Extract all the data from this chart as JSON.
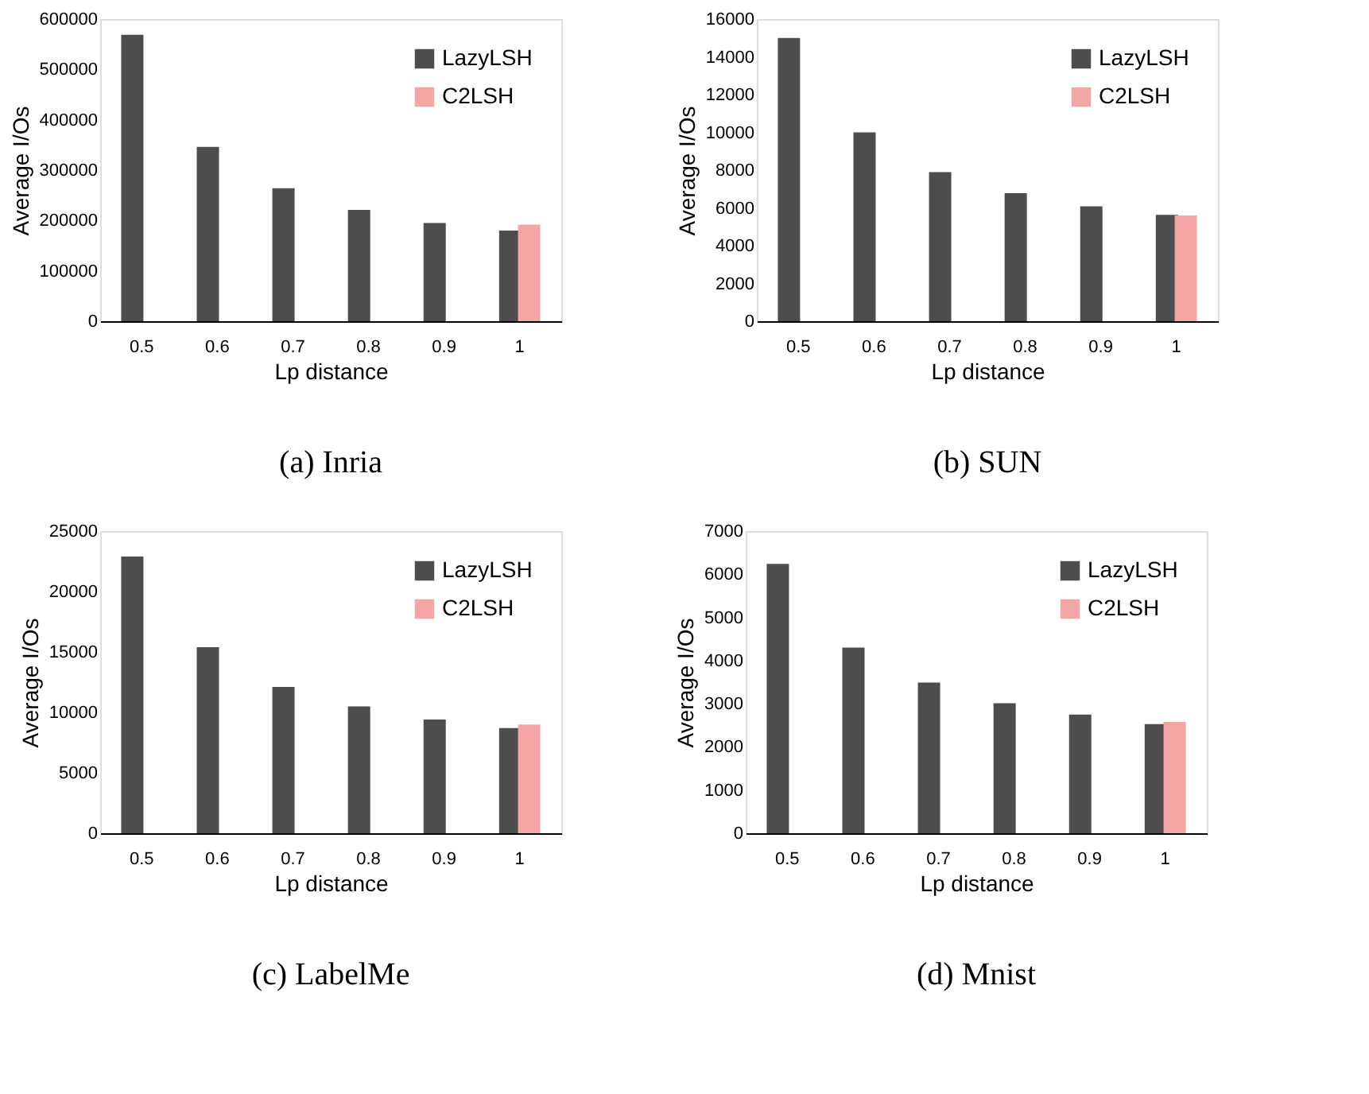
{
  "chart_data": [
    {
      "type": "bar",
      "title": "(a) Inria",
      "xlabel": "Lp distance",
      "ylabel": "Average I/Os",
      "categories": [
        "0.5",
        "0.6",
        "0.7",
        "0.8",
        "0.9",
        "1"
      ],
      "ylim": [
        0,
        600000
      ],
      "yticks": [
        0,
        100000,
        200000,
        300000,
        400000,
        500000,
        600000
      ],
      "legend": "top right",
      "grid": false,
      "series": [
        {
          "name": "LazyLSH",
          "color": "#4d4d4d",
          "values": [
            569000,
            346000,
            264000,
            221000,
            195000,
            180000
          ]
        },
        {
          "name": "C2LSH",
          "color": "#f4a6a6",
          "values": [
            null,
            null,
            null,
            null,
            null,
            192000
          ]
        }
      ]
    },
    {
      "type": "bar",
      "title": "(b) SUN",
      "xlabel": "Lp distance",
      "ylabel": "Average I/Os",
      "categories": [
        "0.5",
        "0.6",
        "0.7",
        "0.8",
        "0.9",
        "1"
      ],
      "ylim": [
        0,
        16000
      ],
      "yticks": [
        0,
        2000,
        4000,
        6000,
        8000,
        10000,
        12000,
        14000,
        16000
      ],
      "legend": "top right",
      "grid": false,
      "series": [
        {
          "name": "LazyLSH",
          "color": "#4d4d4d",
          "values": [
            15000,
            10000,
            7900,
            6780,
            6080,
            5630
          ]
        },
        {
          "name": "C2LSH",
          "color": "#f4a6a6",
          "values": [
            null,
            null,
            null,
            null,
            null,
            5600
          ]
        }
      ]
    },
    {
      "type": "bar",
      "title": "(c) LabelMe",
      "xlabel": "Lp distance",
      "ylabel": "Average I/Os",
      "categories": [
        "0.5",
        "0.6",
        "0.7",
        "0.8",
        "0.9",
        "1"
      ],
      "ylim": [
        0,
        25000
      ],
      "yticks": [
        0,
        5000,
        10000,
        15000,
        20000,
        25000
      ],
      "legend": "top right",
      "grid": false,
      "series": [
        {
          "name": "LazyLSH",
          "color": "#4d4d4d",
          "values": [
            22900,
            15400,
            12100,
            10500,
            9400,
            8700
          ]
        },
        {
          "name": "C2LSH",
          "color": "#f4a6a6",
          "values": [
            null,
            null,
            null,
            null,
            null,
            9000
          ]
        }
      ]
    },
    {
      "type": "bar",
      "title": "(d) Mnist",
      "xlabel": "Lp distance",
      "ylabel": "Average I/Os",
      "categories": [
        "0.5",
        "0.6",
        "0.7",
        "0.8",
        "0.9",
        "1"
      ],
      "ylim": [
        0,
        7000
      ],
      "yticks": [
        0,
        1000,
        2000,
        3000,
        4000,
        5000,
        6000,
        7000
      ],
      "legend": "top right",
      "grid": false,
      "series": [
        {
          "name": "LazyLSH",
          "color": "#4d4d4d",
          "values": [
            6240,
            4300,
            3490,
            3010,
            2750,
            2530
          ]
        },
        {
          "name": "C2LSH",
          "color": "#f4a6a6",
          "values": [
            null,
            null,
            null,
            null,
            null,
            2580
          ]
        }
      ]
    }
  ]
}
